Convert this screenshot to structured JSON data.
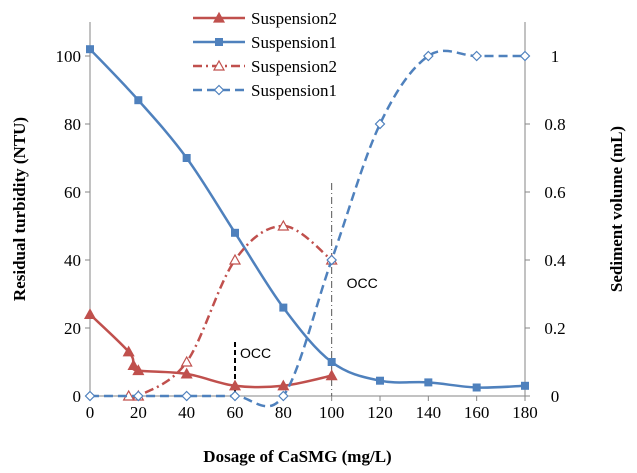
{
  "chart_data": {
    "type": "line",
    "xlabel": "Dosage of CaSMG (mg/L)",
    "ylabel": "Residual turbidity (NTU)",
    "y2label": "Sediment volume (mL)",
    "xlim": [
      0,
      180
    ],
    "ylim": [
      0,
      110
    ],
    "y2lim": [
      0,
      1.1
    ],
    "xticks": [
      0,
      20,
      40,
      60,
      80,
      100,
      120,
      140,
      160,
      180
    ],
    "yticks": [
      0,
      20,
      40,
      60,
      80,
      100
    ],
    "y2ticks": [
      0,
      0.2,
      0.4,
      0.6,
      0.8,
      1
    ],
    "y2tick_labels": [
      "0",
      "0.2",
      "0.4",
      "0.6",
      "0.8",
      "1"
    ],
    "grid": false,
    "legend_position": "top-center",
    "series": [
      {
        "name": "Suspension2",
        "axis": "left",
        "color": "#c0504d",
        "line_style": "solid",
        "marker": "triangle-filled",
        "x": [
          0,
          16,
          18,
          20,
          40,
          60,
          80,
          100
        ],
        "y": [
          24,
          13,
          9,
          7.5,
          6.5,
          3,
          3,
          6
        ]
      },
      {
        "name": "Suspension1",
        "axis": "left",
        "color": "#4f81bd",
        "line_style": "solid",
        "marker": "square-filled",
        "x": [
          0,
          20,
          40,
          60,
          80,
          100,
          120,
          140,
          160,
          180
        ],
        "y": [
          102,
          87,
          70,
          48,
          26,
          10,
          4.5,
          4,
          2.5,
          3
        ]
      },
      {
        "name": "Suspension2",
        "axis": "right",
        "color": "#c0504d",
        "line_style": "dashdot",
        "marker": "triangle-open",
        "x": [
          16,
          20,
          40,
          60,
          80,
          100
        ],
        "y": [
          0,
          0,
          0.1,
          0.4,
          0.5,
          0.4
        ]
      },
      {
        "name": "Suspension1",
        "axis": "right",
        "color": "#4f81bd",
        "line_style": "dashed",
        "marker": "diamond-open",
        "x": [
          0,
          20,
          40,
          60,
          80,
          100,
          120,
          140,
          160,
          180
        ],
        "y": [
          0,
          0,
          0,
          0,
          0,
          0.4,
          0.8,
          1,
          1,
          1
        ]
      }
    ],
    "annotations": [
      {
        "text": "OCC",
        "x": 60,
        "line": "dashed"
      },
      {
        "text": "OCC",
        "x": 100,
        "line": "dashdot"
      }
    ]
  }
}
